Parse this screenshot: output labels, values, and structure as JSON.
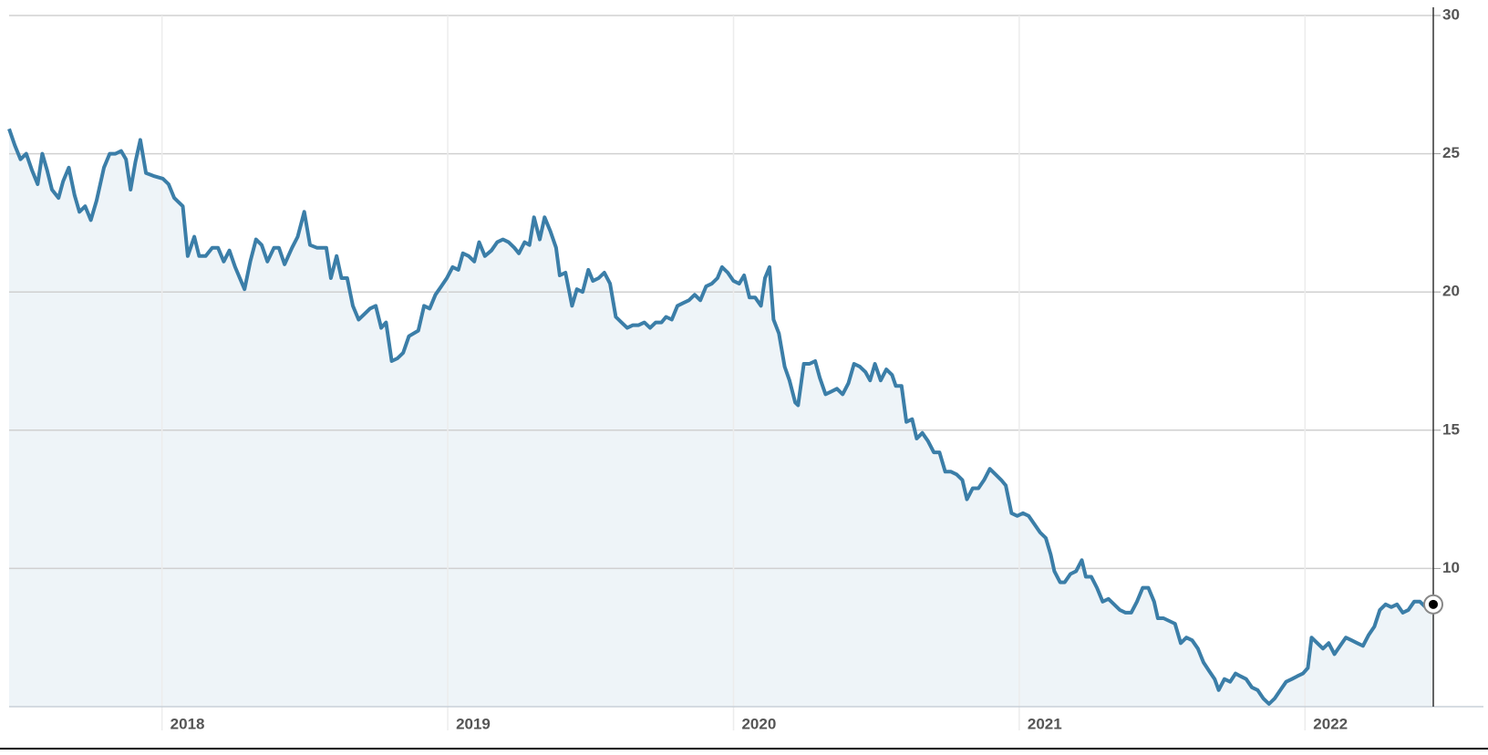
{
  "chart_data": {
    "type": "area",
    "color": "#3b7ea8",
    "fill": "#eef4f8",
    "grid": true,
    "x": [
      2017.465,
      2017.485,
      2017.505,
      2017.525,
      2017.545,
      2017.565,
      2017.581,
      2017.598,
      2017.615,
      2017.638,
      2017.654,
      2017.674,
      2017.694,
      2017.711,
      2017.731,
      2017.751,
      2017.771,
      2017.797,
      2017.817,
      2017.837,
      2017.857,
      2017.874,
      2017.89,
      2017.907,
      2017.924,
      2017.944,
      2017.97,
      2018.003,
      2018.023,
      2018.043,
      2018.073,
      2018.09,
      2018.113,
      2018.13,
      2018.153,
      2018.176,
      2018.196,
      2018.216,
      2018.236,
      2018.256,
      2018.289,
      2018.309,
      2018.329,
      2018.349,
      2018.369,
      2018.392,
      2018.409,
      2018.429,
      2018.455,
      2018.475,
      2018.498,
      2018.518,
      2018.542,
      2018.561,
      2018.575,
      2018.591,
      2018.611,
      2018.628,
      2018.648,
      2018.668,
      2018.688,
      2018.708,
      2018.728,
      2018.748,
      2018.767,
      2018.784,
      2018.804,
      2018.824,
      2018.844,
      2018.864,
      2018.897,
      2018.917,
      2018.937,
      2018.957,
      2018.977,
      2018.997,
      2019.017,
      2019.037,
      2019.053,
      2019.073,
      2019.093,
      2019.11,
      2019.13,
      2019.153,
      2019.173,
      2019.193,
      2019.213,
      2019.233,
      2019.249,
      2019.269,
      2019.286,
      2019.302,
      2019.322,
      2019.339,
      2019.359,
      2019.379,
      2019.392,
      2019.412,
      2019.435,
      2019.452,
      2019.472,
      2019.492,
      2019.508,
      2019.528,
      2019.548,
      2019.568,
      2019.588,
      2019.608,
      2019.628,
      2019.648,
      2019.668,
      2019.688,
      2019.708,
      2019.728,
      2019.748,
      2019.764,
      2019.784,
      2019.804,
      2019.824,
      2019.844,
      2019.864,
      2019.884,
      2019.904,
      2019.924,
      2019.944,
      2019.96,
      2019.98,
      2020.0,
      2020.02,
      2020.037,
      2020.056,
      2020.076,
      2020.096,
      2020.11,
      2020.126,
      2020.14,
      2020.159,
      2020.179,
      2020.196,
      2020.216,
      2020.226,
      2020.246,
      2020.266,
      2020.286,
      2020.302,
      2020.322,
      2020.342,
      2020.362,
      2020.382,
      2020.402,
      2020.422,
      2020.442,
      2020.462,
      2020.478,
      2020.495,
      2020.515,
      2020.535,
      2020.555,
      2020.568,
      2020.588,
      2020.605,
      2020.625,
      2020.641,
      2020.661,
      2020.681,
      2020.701,
      2020.721,
      2020.741,
      2020.761,
      2020.781,
      2020.801,
      2020.817,
      2020.837,
      2020.857,
      2020.877,
      2020.897,
      2020.917,
      2020.937,
      2020.953,
      2020.973,
      2020.993,
      2021.013,
      2021.033,
      2021.053,
      2021.073,
      2021.093,
      2021.11,
      2021.123,
      2021.143,
      2021.159,
      2021.179,
      2021.199,
      2021.219,
      2021.233,
      2021.252,
      2021.272,
      2021.292,
      2021.312,
      2021.332,
      2021.352,
      2021.372,
      2021.392,
      2021.412,
      2021.432,
      2021.452,
      2021.472,
      2021.485,
      2021.505,
      2021.525,
      2021.545,
      2021.565,
      2021.585,
      2021.605,
      2021.625,
      2021.645,
      2021.664,
      2021.684,
      2021.698,
      2021.718,
      2021.738,
      2021.757,
      2021.774,
      2021.794,
      2021.814,
      2021.834,
      2021.854,
      2021.874,
      2021.894,
      2021.914,
      2021.934,
      2021.954,
      2021.973,
      2021.993,
      2022.01,
      2022.023,
      2022.043,
      2022.063,
      2022.083,
      2022.103,
      2022.123,
      2022.143,
      2022.163,
      2022.183,
      2022.203,
      2022.223,
      2022.243,
      2022.262,
      2022.282,
      2022.302,
      2022.322,
      2022.342,
      2022.362,
      2022.382,
      2022.402,
      2022.422,
      2022.449
    ],
    "values": [
      25.9,
      25.3,
      24.8,
      25.0,
      24.4,
      23.9,
      25.0,
      24.4,
      23.7,
      23.4,
      24.0,
      24.5,
      23.5,
      22.9,
      23.1,
      22.6,
      23.3,
      24.5,
      25.0,
      25.0,
      25.1,
      24.8,
      23.7,
      24.7,
      25.5,
      24.3,
      24.2,
      24.1,
      23.9,
      23.4,
      23.1,
      21.3,
      22.0,
      21.3,
      21.3,
      21.6,
      21.6,
      21.1,
      21.5,
      20.9,
      20.1,
      21.1,
      21.9,
      21.7,
      21.1,
      21.6,
      21.6,
      21.0,
      21.6,
      22.0,
      22.9,
      21.7,
      21.6,
      21.6,
      21.6,
      20.5,
      21.3,
      20.5,
      20.5,
      19.5,
      19.0,
      19.2,
      19.4,
      19.5,
      18.7,
      18.9,
      17.5,
      17.6,
      17.8,
      18.4,
      18.6,
      19.5,
      19.4,
      19.9,
      20.2,
      20.5,
      20.9,
      20.8,
      21.4,
      21.3,
      21.1,
      21.8,
      21.3,
      21.5,
      21.8,
      21.9,
      21.8,
      21.6,
      21.4,
      21.8,
      21.7,
      22.7,
      21.9,
      22.7,
      22.2,
      21.6,
      20.6,
      20.7,
      19.5,
      20.1,
      20.0,
      20.8,
      20.4,
      20.5,
      20.7,
      20.3,
      19.1,
      18.9,
      18.7,
      18.8,
      18.8,
      18.9,
      18.7,
      18.9,
      18.9,
      19.1,
      19.0,
      19.5,
      19.6,
      19.7,
      19.9,
      19.7,
      20.2,
      20.3,
      20.5,
      20.9,
      20.7,
      20.4,
      20.3,
      20.6,
      19.8,
      19.8,
      19.5,
      20.5,
      20.9,
      19.0,
      18.5,
      17.3,
      16.8,
      16.0,
      15.9,
      17.4,
      17.4,
      17.5,
      16.9,
      16.3,
      16.4,
      16.5,
      16.3,
      16.7,
      17.4,
      17.3,
      17.1,
      16.8,
      17.4,
      16.8,
      17.2,
      17.0,
      16.6,
      16.6,
      15.3,
      15.4,
      14.7,
      14.9,
      14.6,
      14.2,
      14.2,
      13.5,
      13.5,
      13.4,
      13.2,
      12.5,
      12.9,
      12.9,
      13.2,
      13.6,
      13.4,
      13.2,
      13.0,
      12.0,
      11.9,
      12.0,
      11.9,
      11.6,
      11.3,
      11.1,
      10.5,
      9.9,
      9.5,
      9.5,
      9.8,
      9.9,
      10.3,
      9.7,
      9.7,
      9.3,
      8.8,
      8.9,
      8.7,
      8.5,
      8.4,
      8.4,
      8.8,
      9.3,
      9.3,
      8.8,
      8.2,
      8.2,
      8.1,
      8.0,
      7.3,
      7.5,
      7.4,
      7.1,
      6.6,
      6.3,
      6.0,
      5.6,
      6.0,
      5.9,
      6.2,
      6.1,
      6.0,
      5.7,
      5.6,
      5.3,
      5.1,
      5.3,
      5.6,
      5.9,
      6.0,
      6.1,
      6.2,
      6.4,
      7.5,
      7.3,
      7.1,
      7.3,
      6.9,
      7.2,
      7.5,
      7.4,
      7.3,
      7.2,
      7.6,
      7.9,
      8.5,
      8.7,
      8.6,
      8.7,
      8.4,
      8.5,
      8.8,
      8.8,
      8.6,
      8.7
    ],
    "xlim": [
      2017.465,
      2022.449
    ],
    "xticks": [
      2018,
      2019,
      2020,
      2021,
      2022
    ],
    "ylim": [
      5,
      30
    ],
    "yticks": [
      10,
      15,
      20,
      25,
      30
    ]
  }
}
